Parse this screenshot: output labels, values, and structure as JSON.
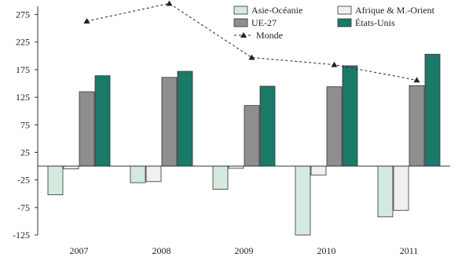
{
  "chart_data": {
    "type": "bar",
    "categories": [
      "2007",
      "2008",
      "2009",
      "2010",
      "2011"
    ],
    "series": [
      {
        "name": "Asie-Océanie",
        "type": "bar",
        "color": "#d4eadf",
        "values": [
          -52,
          -30,
          -42,
          -125,
          -92
        ]
      },
      {
        "name": "Afrique & M.-Orient",
        "type": "bar",
        "color": "#f0f0f0",
        "values": [
          -5,
          -28,
          -4,
          -16,
          -80
        ]
      },
      {
        "name": "UE-27",
        "type": "bar",
        "color": "#8e8e8e",
        "values": [
          135,
          161,
          110,
          144,
          146
        ]
      },
      {
        "name": "États-Unis",
        "type": "bar",
        "color": "#1a7a68",
        "values": [
          164,
          172,
          145,
          182,
          203
        ]
      },
      {
        "name": "Monde",
        "type": "line",
        "color": "#222222",
        "values": [
          263,
          295,
          197,
          184,
          156
        ]
      }
    ],
    "yticks": [
      275,
      225,
      175,
      125,
      75,
      25,
      -25,
      -75,
      -125
    ],
    "ylim": [
      -125,
      290
    ],
    "legend_position": "top-right"
  }
}
